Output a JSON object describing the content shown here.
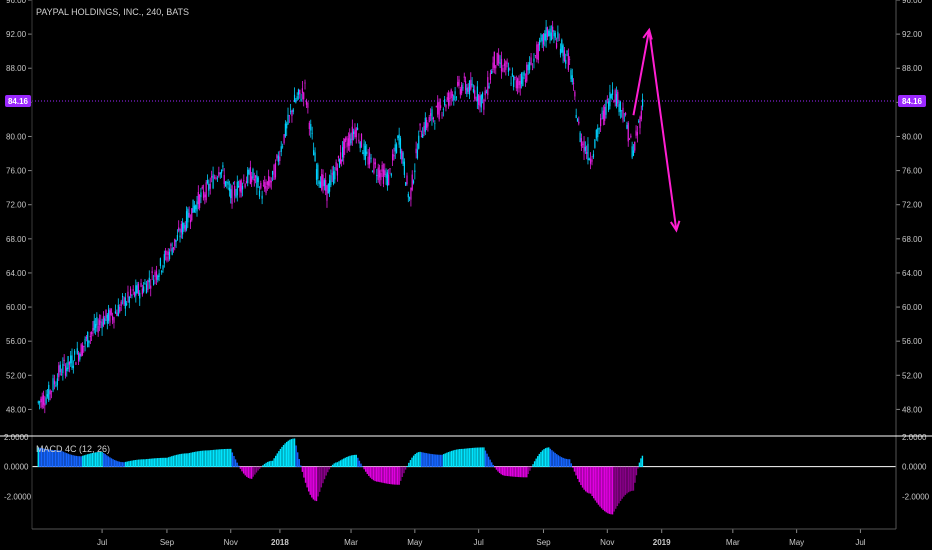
{
  "chart_data": [
    {
      "type": "line",
      "title": "PAYPAL HOLDINGS, INC., 240, BATS",
      "x_ticks": [
        "Jul",
        "Sep",
        "Nov",
        "2018",
        "Mar",
        "May",
        "Jul",
        "Sep",
        "Nov",
        "2019",
        "Mar",
        "May",
        "Jul"
      ],
      "y_ticks": [
        "96.00",
        "92.00",
        "88.00",
        "84.00",
        "80.00",
        "76.00",
        "72.00",
        "68.00",
        "64.00",
        "60.00",
        "56.00",
        "52.00",
        "48.00"
      ],
      "ylim": [
        45,
        96
      ],
      "last_price": 84.16,
      "last_price_label": "84.16",
      "series": [
        {
          "x": [
            "2017-05-15",
            "2017-05-25",
            "2017-06-05",
            "2017-06-15",
            "2017-06-25",
            "2017-07-05",
            "2017-07-15",
            "2017-07-25",
            "2017-08-05",
            "2017-08-15",
            "2017-08-25",
            "2017-09-05",
            "2017-09-15",
            "2017-09-25",
            "2017-10-05",
            "2017-10-15",
            "2017-10-25",
            "2017-11-05",
            "2017-11-15",
            "2017-11-25",
            "2017-12-05",
            "2017-12-15",
            "2017-12-25",
            "2018-01-05",
            "2018-01-15",
            "2018-01-25",
            "2018-02-05",
            "2018-02-15",
            "2018-02-25",
            "2018-03-05",
            "2018-03-15",
            "2018-03-25",
            "2018-04-05",
            "2018-04-15",
            "2018-04-25",
            "2018-05-05",
            "2018-05-15",
            "2018-05-25",
            "2018-06-05",
            "2018-06-15",
            "2018-06-25",
            "2018-07-05",
            "2018-07-15",
            "2018-07-25",
            "2018-08-05",
            "2018-08-15",
            "2018-08-25",
            "2018-09-05",
            "2018-09-15",
            "2018-09-25",
            "2018-10-05",
            "2018-10-15",
            "2018-10-25",
            "2018-11-05",
            "2018-11-15",
            "2018-11-25",
            "2018-12-05",
            "2018-12-15"
          ],
          "values": [
            48.8,
            49.8,
            52.5,
            53.5,
            55.0,
            57.0,
            58.5,
            59.0,
            60.5,
            61.5,
            62.5,
            64.0,
            66.0,
            68.0,
            70.5,
            72.5,
            74.0,
            76.5,
            73.0,
            74.5,
            75.5,
            73.5,
            75.0,
            80.0,
            84.0,
            85.5,
            76.0,
            73.5,
            76.5,
            79.0,
            81.0,
            77.5,
            76.0,
            75.0,
            80.0,
            72.5,
            80.5,
            82.0,
            83.5,
            85.0,
            86.0,
            85.5,
            84.0,
            89.0,
            88.0,
            86.0,
            87.5,
            90.0,
            92.5,
            91.0,
            88.5,
            80.0,
            77.5,
            82.0,
            85.5,
            83.0,
            78.0,
            84.5
          ]
        }
      ]
    },
    {
      "type": "bar",
      "title": "MACD 4C (12, 26)",
      "y_ticks": [
        "2.0000",
        "0.0000",
        "-2.0000"
      ],
      "ylim": [
        -4.0,
        2.0
      ],
      "x": [
        "2017-05-15",
        "2017-06-05",
        "2017-06-25",
        "2017-07-15",
        "2017-08-05",
        "2017-08-25",
        "2017-09-15",
        "2017-10-05",
        "2017-10-25",
        "2017-11-15",
        "2017-12-05",
        "2017-12-25",
        "2018-01-15",
        "2018-02-05",
        "2018-02-25",
        "2018-03-15",
        "2018-04-05",
        "2018-04-25",
        "2018-05-15",
        "2018-06-05",
        "2018-06-25",
        "2018-07-15",
        "2018-08-05",
        "2018-08-25",
        "2018-09-15",
        "2018-10-05",
        "2018-10-25",
        "2018-11-15",
        "2018-12-05",
        "2018-12-15"
      ],
      "values": [
        1.3,
        1.1,
        0.7,
        1.0,
        0.3,
        0.5,
        0.6,
        0.9,
        1.1,
        1.2,
        -0.8,
        0.4,
        1.9,
        -2.3,
        0.3,
        0.8,
        -1.0,
        -1.2,
        1.0,
        0.8,
        1.2,
        1.3,
        -0.6,
        -0.7,
        1.3,
        0.5,
        -1.8,
        -3.2,
        -1.6,
        0.8
      ],
      "colors": {
        "pos_rising": "#00e5ff",
        "pos_falling": "#1565ff",
        "neg_falling": "#e000e0",
        "neg_rising": "#8a008a"
      }
    }
  ],
  "annotation": {
    "type": "arrow-path",
    "color": "#ff1fd2",
    "points": [
      [
        "2018-12-05",
        82.5
      ],
      [
        "2018-12-20",
        92.5
      ],
      [
        "2019-01-15",
        69.0
      ]
    ]
  },
  "colors": {
    "background": "#000000",
    "up": "#00d2ff",
    "down": "#e41ee0",
    "price_line": "#9b28ff",
    "axis": "#c8c8c8",
    "divider": "#ffffff"
  }
}
